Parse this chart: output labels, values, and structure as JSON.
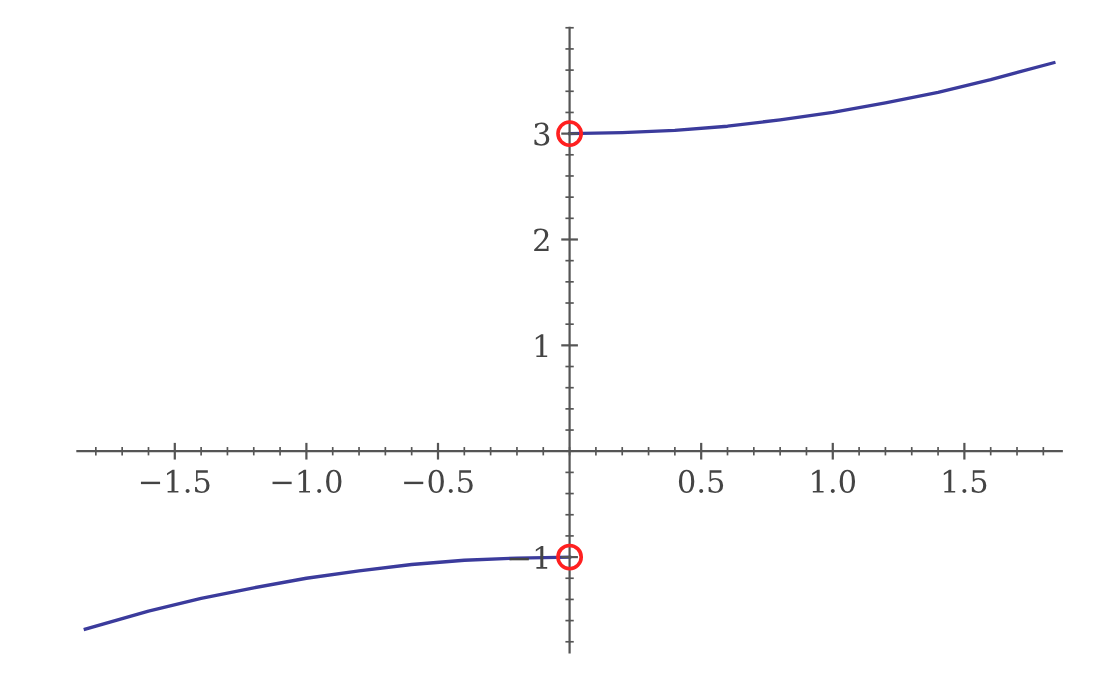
{
  "chart_data": {
    "type": "line",
    "xlim": [
      -1.87,
      1.87
    ],
    "ylim": [
      -1.9,
      4.0
    ],
    "xticks": [
      {
        "value": -1.5,
        "label": "−1.5"
      },
      {
        "value": -1.0,
        "label": "−1.0"
      },
      {
        "value": -0.5,
        "label": "−0.5"
      },
      0.5,
      {
        "value": 1.0,
        "label": "1.0"
      },
      1.5
    ],
    "yticks": [
      {
        "value": -1,
        "label": "−1"
      },
      1,
      2,
      3
    ],
    "grid": false,
    "legend": false,
    "line_style": "solid",
    "series": [
      {
        "color": "#3b3b9c",
        "marker": "none",
        "x": [
          -1.84,
          -1.6,
          -1.4,
          -1.2,
          -1.0,
          -0.8,
          -0.6,
          -0.4,
          -0.2,
          0.0
        ],
        "values": [
          -1.68,
          -1.51,
          -1.39,
          -1.29,
          -1.2,
          -1.13,
          -1.07,
          -1.03,
          -1.01,
          -1.0
        ]
      },
      {
        "color": "#3b3b9c",
        "marker": "none",
        "x": [
          0.0,
          0.2,
          0.4,
          0.6,
          0.8,
          1.0,
          1.2,
          1.4,
          1.6,
          1.84
        ],
        "values": [
          3.0,
          3.01,
          3.03,
          3.07,
          3.13,
          3.2,
          3.29,
          3.39,
          3.51,
          3.67
        ]
      },
      {
        "type": "scatter",
        "color": "#ff2020",
        "marker": "circle",
        "x": [
          0.0,
          0.0
        ],
        "values": [
          3.0,
          -1.0
        ]
      }
    ]
  }
}
